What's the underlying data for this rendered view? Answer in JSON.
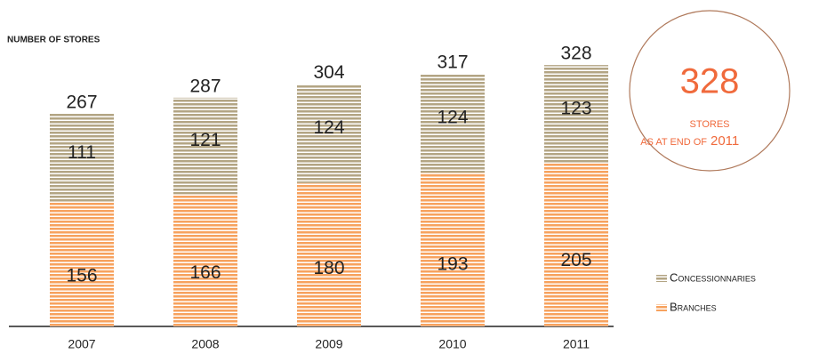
{
  "chart_data": {
    "type": "stacked-bar",
    "ylabel": "NUMBER OF STORES",
    "categories": [
      "2007",
      "2008",
      "2009",
      "2010",
      "2011"
    ],
    "series": [
      {
        "name": "Branches",
        "color": "#f7a25e",
        "values": [
          156,
          166,
          180,
          193,
          205
        ]
      },
      {
        "name": "Concessionnaries",
        "color": "#b3a584",
        "values": [
          111,
          121,
          124,
          124,
          123
        ]
      }
    ],
    "totals": [
      267,
      287,
      304,
      317,
      328
    ],
    "ylim": [
      0,
      350
    ],
    "annotation": {
      "number": "328",
      "line1": "STORES",
      "line2": "AS AT END OF",
      "year": "2011"
    }
  }
}
